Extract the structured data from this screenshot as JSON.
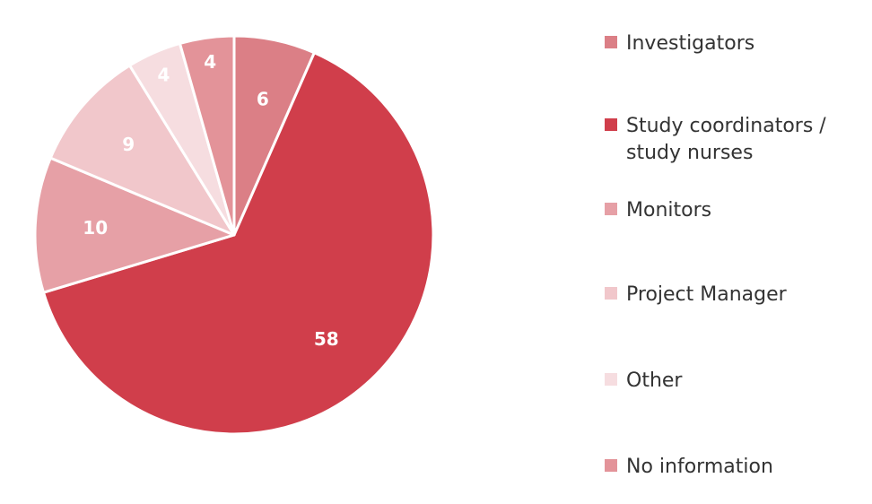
{
  "chart_data": {
    "type": "pie",
    "title": "",
    "start_angle_deg": 0,
    "direction": "clockwise",
    "legend_position": "right",
    "slices": [
      {
        "name": "Investigators",
        "value": 6,
        "color": "#DB7F86",
        "label": "6"
      },
      {
        "name": "Study coordinators / study nurses",
        "value": 58,
        "color": "#D03E4B",
        "label": "58"
      },
      {
        "name": "Monitors",
        "value": 10,
        "color": "#E6A0A6",
        "label": "10"
      },
      {
        "name": "Project Manager",
        "value": 9,
        "color": "#F1C7CB",
        "label": "9"
      },
      {
        "name": "Other",
        "value": 4,
        "color": "#F6DDE0",
        "label": "4"
      },
      {
        "name": "No information",
        "value": 4,
        "color": "#E39399",
        "label": "4"
      }
    ]
  },
  "legend": {
    "items": [
      {
        "label": "Investigators",
        "color": "#DB7F86"
      },
      {
        "label": "Study coordinators /\nstudy nurses",
        "color": "#D03E4B"
      },
      {
        "label": "Monitors",
        "color": "#E6A0A6"
      },
      {
        "label": "Project Manager",
        "color": "#F1C7CB"
      },
      {
        "label": "Other",
        "color": "#F6DDE0"
      },
      {
        "label": "No information",
        "color": "#E39399"
      }
    ]
  }
}
